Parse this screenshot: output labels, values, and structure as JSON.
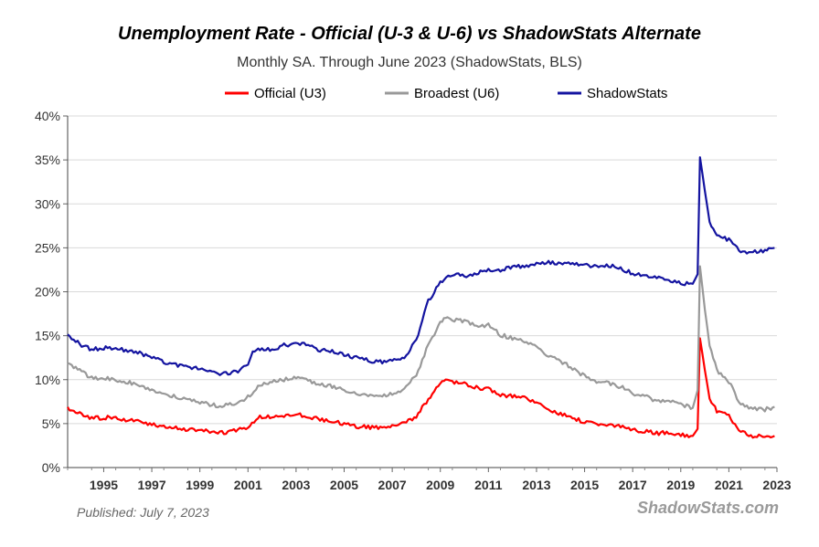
{
  "header": {
    "title": "Unemployment Rate - Official (U-3 & U-6) vs ShadowStats Alternate",
    "subtitle": "Monthly SA. Through June 2023  (ShadowStats, BLS)"
  },
  "footer": {
    "published": "Published: July 7, 2023",
    "brand": "ShadowStats.com"
  },
  "chart_data": {
    "type": "line",
    "title": "Unemployment Rate - Official (U-3 & U-6) vs ShadowStats Alternate",
    "subtitle": "Monthly SA. Through June 2023  (ShadowStats, BLS)",
    "xlabel": "",
    "ylabel": "",
    "xlim": [
      1994.0,
      2023.5
    ],
    "ylim": [
      0,
      40
    ],
    "x_ticks": [
      "1995",
      "1997",
      "1999",
      "2001",
      "2003",
      "2005",
      "2007",
      "2009",
      "2011",
      "2013",
      "2015",
      "2017",
      "2019",
      "2021",
      "2023"
    ],
    "y_ticks": [
      "0%",
      "5%",
      "10%",
      "15%",
      "20%",
      "25%",
      "30%",
      "35%",
      "40%"
    ],
    "grid": "horizontal",
    "legend_position": "top",
    "series": [
      {
        "name": "Official (U3)",
        "color": "#ff0000",
        "points": [
          [
            1994.0,
            6.7
          ],
          [
            1994.5,
            6.1
          ],
          [
            1995.0,
            5.6
          ],
          [
            1995.5,
            5.7
          ],
          [
            1996.0,
            5.6
          ],
          [
            1996.5,
            5.4
          ],
          [
            1997.0,
            5.3
          ],
          [
            1997.5,
            4.9
          ],
          [
            1998.0,
            4.6
          ],
          [
            1998.5,
            4.5
          ],
          [
            1999.0,
            4.3
          ],
          [
            1999.5,
            4.3
          ],
          [
            2000.0,
            4.0
          ],
          [
            2000.5,
            4.0
          ],
          [
            2001.0,
            4.2
          ],
          [
            2001.5,
            4.6
          ],
          [
            2002.0,
            5.7
          ],
          [
            2002.5,
            5.8
          ],
          [
            2003.0,
            5.9
          ],
          [
            2003.5,
            6.2
          ],
          [
            2004.0,
            5.7
          ],
          [
            2004.5,
            5.5
          ],
          [
            2005.0,
            5.3
          ],
          [
            2005.5,
            5.0
          ],
          [
            2006.0,
            4.7
          ],
          [
            2006.5,
            4.6
          ],
          [
            2007.0,
            4.6
          ],
          [
            2007.5,
            4.7
          ],
          [
            2008.0,
            5.0
          ],
          [
            2008.5,
            5.8
          ],
          [
            2009.0,
            7.8
          ],
          [
            2009.5,
            9.5
          ],
          [
            2009.8,
            10.0
          ],
          [
            2010.0,
            9.8
          ],
          [
            2010.5,
            9.5
          ],
          [
            2011.0,
            9.1
          ],
          [
            2011.5,
            9.0
          ],
          [
            2012.0,
            8.3
          ],
          [
            2012.5,
            8.1
          ],
          [
            2013.0,
            7.9
          ],
          [
            2013.5,
            7.3
          ],
          [
            2014.0,
            6.6
          ],
          [
            2014.5,
            6.1
          ],
          [
            2015.0,
            5.6
          ],
          [
            2015.5,
            5.2
          ],
          [
            2016.0,
            4.9
          ],
          [
            2016.5,
            4.9
          ],
          [
            2017.0,
            4.7
          ],
          [
            2017.5,
            4.3
          ],
          [
            2018.0,
            4.1
          ],
          [
            2018.5,
            3.9
          ],
          [
            2019.0,
            4.0
          ],
          [
            2019.5,
            3.7
          ],
          [
            2020.0,
            3.6
          ],
          [
            2020.2,
            4.4
          ],
          [
            2020.3,
            14.7
          ],
          [
            2020.5,
            11.1
          ],
          [
            2020.7,
            7.9
          ],
          [
            2021.0,
            6.4
          ],
          [
            2021.5,
            5.9
          ],
          [
            2022.0,
            4.0
          ],
          [
            2022.5,
            3.6
          ],
          [
            2023.0,
            3.5
          ],
          [
            2023.4,
            3.6
          ]
        ]
      },
      {
        "name": "Broadest (U6)",
        "color": "#999999",
        "points": [
          [
            1994.0,
            11.8
          ],
          [
            1994.5,
            11.0
          ],
          [
            1995.0,
            10.2
          ],
          [
            1995.5,
            10.2
          ],
          [
            1996.0,
            10.0
          ],
          [
            1996.5,
            9.7
          ],
          [
            1997.0,
            9.4
          ],
          [
            1997.5,
            8.8
          ],
          [
            1998.0,
            8.4
          ],
          [
            1998.5,
            8.0
          ],
          [
            1999.0,
            7.7
          ],
          [
            1999.5,
            7.5
          ],
          [
            2000.0,
            7.1
          ],
          [
            2000.5,
            7.0
          ],
          [
            2001.0,
            7.3
          ],
          [
            2001.5,
            8.0
          ],
          [
            2002.0,
            9.5
          ],
          [
            2002.5,
            9.7
          ],
          [
            2003.0,
            10.0
          ],
          [
            2003.5,
            10.3
          ],
          [
            2004.0,
            9.9
          ],
          [
            2004.5,
            9.5
          ],
          [
            2005.0,
            9.2
          ],
          [
            2005.5,
            8.9
          ],
          [
            2006.0,
            8.4
          ],
          [
            2006.5,
            8.2
          ],
          [
            2007.0,
            8.2
          ],
          [
            2007.5,
            8.4
          ],
          [
            2008.0,
            9.0
          ],
          [
            2008.5,
            10.5
          ],
          [
            2009.0,
            14.0
          ],
          [
            2009.5,
            16.5
          ],
          [
            2009.8,
            17.1
          ],
          [
            2010.0,
            16.8
          ],
          [
            2010.5,
            16.6
          ],
          [
            2011.0,
            16.1
          ],
          [
            2011.5,
            16.2
          ],
          [
            2012.0,
            15.1
          ],
          [
            2012.5,
            14.7
          ],
          [
            2013.0,
            14.4
          ],
          [
            2013.5,
            13.8
          ],
          [
            2014.0,
            12.7
          ],
          [
            2014.5,
            12.1
          ],
          [
            2015.0,
            11.3
          ],
          [
            2015.5,
            10.4
          ],
          [
            2016.0,
            9.8
          ],
          [
            2016.5,
            9.6
          ],
          [
            2017.0,
            9.2
          ],
          [
            2017.5,
            8.4
          ],
          [
            2018.0,
            8.1
          ],
          [
            2018.5,
            7.6
          ],
          [
            2019.0,
            7.5
          ],
          [
            2019.5,
            7.2
          ],
          [
            2020.0,
            6.8
          ],
          [
            2020.2,
            8.8
          ],
          [
            2020.3,
            22.9
          ],
          [
            2020.5,
            18.0
          ],
          [
            2020.7,
            14.0
          ],
          [
            2021.0,
            11.1
          ],
          [
            2021.5,
            9.8
          ],
          [
            2022.0,
            7.1
          ],
          [
            2022.5,
            6.7
          ],
          [
            2023.0,
            6.6
          ],
          [
            2023.4,
            6.9
          ]
        ]
      },
      {
        "name": "ShadowStats",
        "color": "#1414a0",
        "points": [
          [
            1994.0,
            15.2
          ],
          [
            1994.5,
            14.0
          ],
          [
            1995.0,
            13.4
          ],
          [
            1995.5,
            13.6
          ],
          [
            1996.0,
            13.5
          ],
          [
            1996.5,
            13.3
          ],
          [
            1997.0,
            13.0
          ],
          [
            1997.5,
            12.6
          ],
          [
            1998.0,
            12.0
          ],
          [
            1998.5,
            11.7
          ],
          [
            1999.0,
            11.4
          ],
          [
            1999.5,
            11.2
          ],
          [
            2000.0,
            10.8
          ],
          [
            2000.5,
            10.7
          ],
          [
            2001.0,
            10.9
          ],
          [
            2001.5,
            11.7
          ],
          [
            2001.7,
            13.2
          ],
          [
            2002.0,
            13.4
          ],
          [
            2002.5,
            13.5
          ],
          [
            2003.0,
            13.9
          ],
          [
            2003.5,
            14.2
          ],
          [
            2004.0,
            13.9
          ],
          [
            2004.5,
            13.4
          ],
          [
            2005.0,
            13.2
          ],
          [
            2005.5,
            12.9
          ],
          [
            2006.0,
            12.5
          ],
          [
            2006.5,
            12.2
          ],
          [
            2007.0,
            12.0
          ],
          [
            2007.5,
            12.3
          ],
          [
            2008.0,
            12.5
          ],
          [
            2008.5,
            14.5
          ],
          [
            2009.0,
            19.0
          ],
          [
            2009.5,
            21.0
          ],
          [
            2010.0,
            22.0
          ],
          [
            2010.5,
            21.8
          ],
          [
            2011.0,
            22.1
          ],
          [
            2011.5,
            22.6
          ],
          [
            2012.0,
            22.4
          ],
          [
            2012.5,
            22.8
          ],
          [
            2013.0,
            22.9
          ],
          [
            2013.5,
            23.2
          ],
          [
            2014.0,
            23.3
          ],
          [
            2014.5,
            23.2
          ],
          [
            2015.0,
            23.1
          ],
          [
            2015.5,
            23.0
          ],
          [
            2016.0,
            22.9
          ],
          [
            2016.5,
            23.0
          ],
          [
            2017.0,
            22.6
          ],
          [
            2017.5,
            22.1
          ],
          [
            2018.0,
            21.8
          ],
          [
            2018.5,
            21.6
          ],
          [
            2019.0,
            21.3
          ],
          [
            2019.5,
            21.0
          ],
          [
            2020.0,
            20.9
          ],
          [
            2020.2,
            22.0
          ],
          [
            2020.3,
            35.3
          ],
          [
            2020.5,
            31.5
          ],
          [
            2020.7,
            28.0
          ],
          [
            2021.0,
            26.5
          ],
          [
            2021.5,
            25.9
          ],
          [
            2022.0,
            24.6
          ],
          [
            2022.5,
            24.5
          ],
          [
            2023.0,
            24.6
          ],
          [
            2023.4,
            25.0
          ]
        ]
      }
    ]
  }
}
